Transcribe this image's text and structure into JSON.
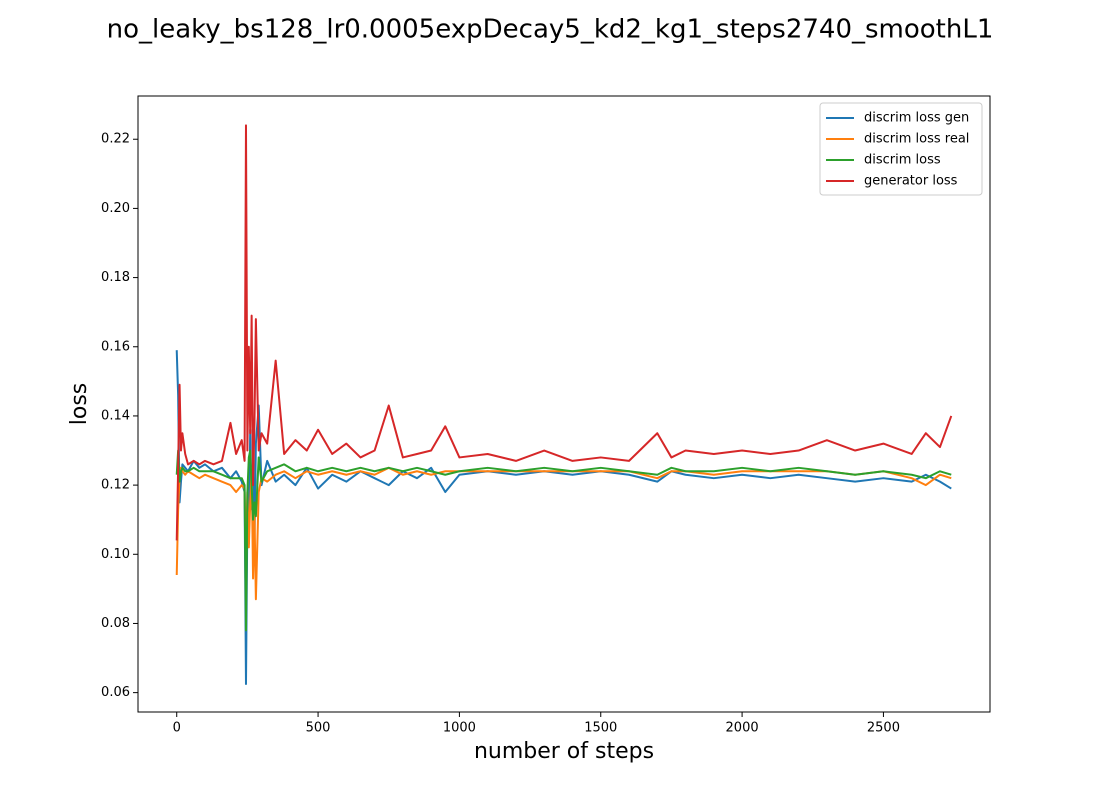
{
  "chart_data": {
    "type": "line",
    "title": "no_leaky_bs128_lr0.0005expDecay5_kd2_kg1_steps2740_smoothL1",
    "x_label": "number of steps",
    "y_label": "loss",
    "x": [
      0,
      5,
      10,
      15,
      20,
      30,
      40,
      60,
      80,
      100,
      130,
      160,
      190,
      210,
      230,
      240,
      245,
      250,
      255,
      260,
      265,
      270,
      275,
      280,
      290,
      300,
      320,
      350,
      380,
      420,
      460,
      500,
      550,
      600,
      650,
      700,
      750,
      800,
      850,
      900,
      950,
      1000,
      1100,
      1200,
      1300,
      1400,
      1500,
      1600,
      1700,
      1750,
      1800,
      1900,
      2000,
      2100,
      2200,
      2300,
      2400,
      2500,
      2600,
      2650,
      2700,
      2740
    ],
    "series": [
      {
        "name": "discrim loss gen",
        "color": "#1f77b4",
        "values": [
          0.159,
          0.146,
          0.115,
          0.121,
          0.126,
          0.125,
          0.124,
          0.127,
          0.125,
          0.126,
          0.124,
          0.125,
          0.122,
          0.124,
          0.121,
          0.118,
          0.0625,
          0.112,
          0.103,
          0.136,
          0.113,
          0.127,
          0.104,
          0.132,
          0.143,
          0.12,
          0.127,
          0.121,
          0.123,
          0.12,
          0.125,
          0.119,
          0.123,
          0.121,
          0.124,
          0.122,
          0.12,
          0.124,
          0.122,
          0.125,
          0.118,
          0.123,
          0.124,
          0.123,
          0.124,
          0.123,
          0.124,
          0.123,
          0.121,
          0.124,
          0.123,
          0.122,
          0.123,
          0.122,
          0.123,
          0.122,
          0.121,
          0.122,
          0.121,
          0.123,
          0.121,
          0.119
        ]
      },
      {
        "name": "discrim loss real",
        "color": "#ff7f0e",
        "values": [
          0.094,
          0.113,
          0.122,
          0.125,
          0.124,
          0.123,
          0.124,
          0.123,
          0.122,
          0.123,
          0.122,
          0.121,
          0.12,
          0.118,
          0.12,
          0.119,
          0.099,
          0.118,
          0.102,
          0.115,
          0.125,
          0.093,
          0.112,
          0.087,
          0.118,
          0.122,
          0.121,
          0.123,
          0.124,
          0.122,
          0.124,
          0.123,
          0.124,
          0.123,
          0.124,
          0.123,
          0.125,
          0.123,
          0.124,
          0.123,
          0.124,
          0.124,
          0.124,
          0.124,
          0.124,
          0.124,
          0.124,
          0.124,
          0.122,
          0.124,
          0.124,
          0.123,
          0.124,
          0.124,
          0.124,
          0.124,
          0.123,
          0.124,
          0.122,
          0.12,
          0.123,
          0.122
        ]
      },
      {
        "name": "discrim loss",
        "color": "#2ca02c",
        "values": [
          0.123,
          0.13,
          0.121,
          0.124,
          0.125,
          0.124,
          0.124,
          0.125,
          0.124,
          0.124,
          0.124,
          0.123,
          0.122,
          0.122,
          0.122,
          0.12,
          0.078,
          0.118,
          0.128,
          0.13,
          0.12,
          0.11,
          0.115,
          0.111,
          0.128,
          0.121,
          0.124,
          0.125,
          0.126,
          0.124,
          0.125,
          0.124,
          0.125,
          0.124,
          0.125,
          0.124,
          0.125,
          0.124,
          0.125,
          0.124,
          0.123,
          0.124,
          0.125,
          0.124,
          0.125,
          0.124,
          0.125,
          0.124,
          0.123,
          0.125,
          0.124,
          0.124,
          0.125,
          0.124,
          0.125,
          0.124,
          0.123,
          0.124,
          0.123,
          0.122,
          0.124,
          0.123
        ]
      },
      {
        "name": "generator loss",
        "color": "#d62728",
        "values": [
          0.104,
          0.125,
          0.149,
          0.13,
          0.135,
          0.129,
          0.126,
          0.127,
          0.126,
          0.127,
          0.126,
          0.127,
          0.138,
          0.129,
          0.133,
          0.127,
          0.224,
          0.13,
          0.16,
          0.135,
          0.169,
          0.12,
          0.138,
          0.168,
          0.13,
          0.135,
          0.132,
          0.156,
          0.129,
          0.133,
          0.13,
          0.136,
          0.129,
          0.132,
          0.128,
          0.13,
          0.143,
          0.128,
          0.129,
          0.13,
          0.137,
          0.128,
          0.129,
          0.127,
          0.13,
          0.127,
          0.128,
          0.127,
          0.135,
          0.128,
          0.13,
          0.129,
          0.13,
          0.129,
          0.13,
          0.133,
          0.13,
          0.132,
          0.129,
          0.135,
          0.131,
          0.14
        ]
      }
    ],
    "xlim": [
      -137,
      2877
    ],
    "ylim": [
      0.0544,
      0.2325
    ],
    "xticks": [
      0,
      500,
      1000,
      1500,
      2000,
      2500
    ],
    "yticks": [
      0.06,
      0.08,
      {
        "value": 0.1,
        "label": "0.10"
      },
      0.12,
      0.14,
      0.16,
      0.18,
      {
        "value": 0.2,
        "label": "0.20"
      },
      0.22
    ],
    "legend": "upper right"
  }
}
